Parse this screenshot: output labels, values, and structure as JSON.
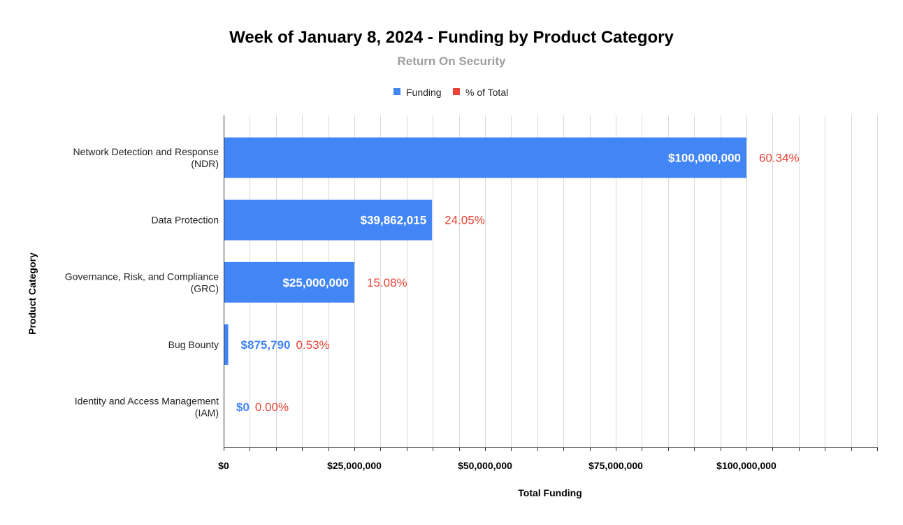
{
  "chart_data": {
    "type": "bar",
    "orientation": "horizontal",
    "title": "Week of January 8, 2024 - Funding by Product Category",
    "subtitle": "Return On Security",
    "xlabel": "Total Funding",
    "ylabel": "Product Category",
    "xlim": [
      0,
      125000000
    ],
    "x_ticks": [
      0,
      25000000,
      50000000,
      75000000,
      100000000
    ],
    "x_tick_labels": [
      "$0",
      "$25,000,000",
      "$50,000,000",
      "$75,000,000",
      "$100,000,000"
    ],
    "grid": true,
    "legend_position": "top",
    "categories": [
      [
        "Network Detection and Response",
        "(NDR)"
      ],
      [
        "Data Protection"
      ],
      [
        "Governance, Risk, and Compliance",
        "(GRC)"
      ],
      [
        "Bug Bounty"
      ],
      [
        "Identity and Access Management",
        "(IAM)"
      ]
    ],
    "series": [
      {
        "name": "Funding",
        "color": "#4285f4",
        "values": [
          100000000,
          39862015,
          25000000,
          875790,
          0
        ],
        "labels": [
          "$100,000,000",
          "$39,862,015",
          "$25,000,000",
          "$875,790",
          "$0"
        ]
      },
      {
        "name": "% of Total",
        "color": "#ea4335",
        "values": [
          60.34,
          24.05,
          15.08,
          0.53,
          0.0
        ],
        "labels": [
          "60.34%",
          "24.05%",
          "15.08%",
          "0.53%",
          "0.00%"
        ]
      }
    ]
  }
}
